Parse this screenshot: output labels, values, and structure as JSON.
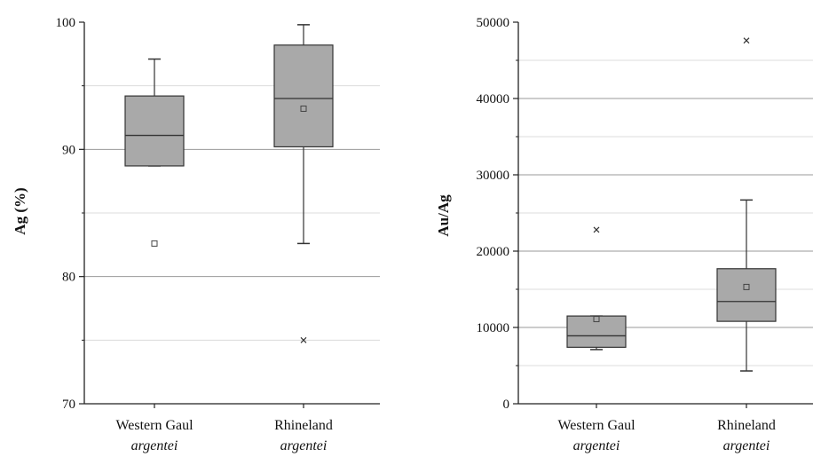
{
  "chart_data": [
    {
      "type": "box",
      "ylabel": "Ag (%)",
      "ylim": [
        70,
        100
      ],
      "yticks": [
        70,
        80,
        90,
        100
      ],
      "minor_grid": [
        75,
        85,
        95
      ],
      "major_grid": [
        80,
        90
      ],
      "grid": true,
      "categories": [
        {
          "name": "Western Gaul",
          "sub": "argentei"
        },
        {
          "name": "Rhineland",
          "sub": "argentei"
        }
      ],
      "boxes": [
        {
          "q1": 88.7,
          "median": 91.1,
          "q3": 94.2,
          "whisker_low": 88.7,
          "whisker_high": 97.1,
          "mean": 82.6,
          "outliers": []
        },
        {
          "q1": 90.2,
          "median": 94.0,
          "q3": 98.2,
          "whisker_low": 82.6,
          "whisker_high": 99.8,
          "mean": 93.2,
          "outliers": [
            75.0
          ]
        }
      ]
    },
    {
      "type": "box",
      "ylabel": "Au/Ag",
      "ylim": [
        0,
        50000
      ],
      "yticks": [
        0,
        10000,
        20000,
        30000,
        40000,
        50000
      ],
      "minor_grid": [
        5000,
        15000,
        25000,
        35000,
        45000
      ],
      "major_grid": [
        10000,
        20000,
        30000,
        40000
      ],
      "grid": true,
      "categories": [
        {
          "name": "Western Gaul",
          "sub": "argentei"
        },
        {
          "name": "Rhineland",
          "sub": "argentei"
        }
      ],
      "boxes": [
        {
          "q1": 7400,
          "median": 8900,
          "q3": 11500,
          "whisker_low": 7100,
          "whisker_high": 11500,
          "mean": 11100,
          "outliers": [
            22800
          ]
        },
        {
          "q1": 10800,
          "median": 13400,
          "q3": 17700,
          "whisker_low": 4300,
          "whisker_high": 26700,
          "mean": 15300,
          "outliers": [
            47600
          ]
        }
      ]
    }
  ]
}
